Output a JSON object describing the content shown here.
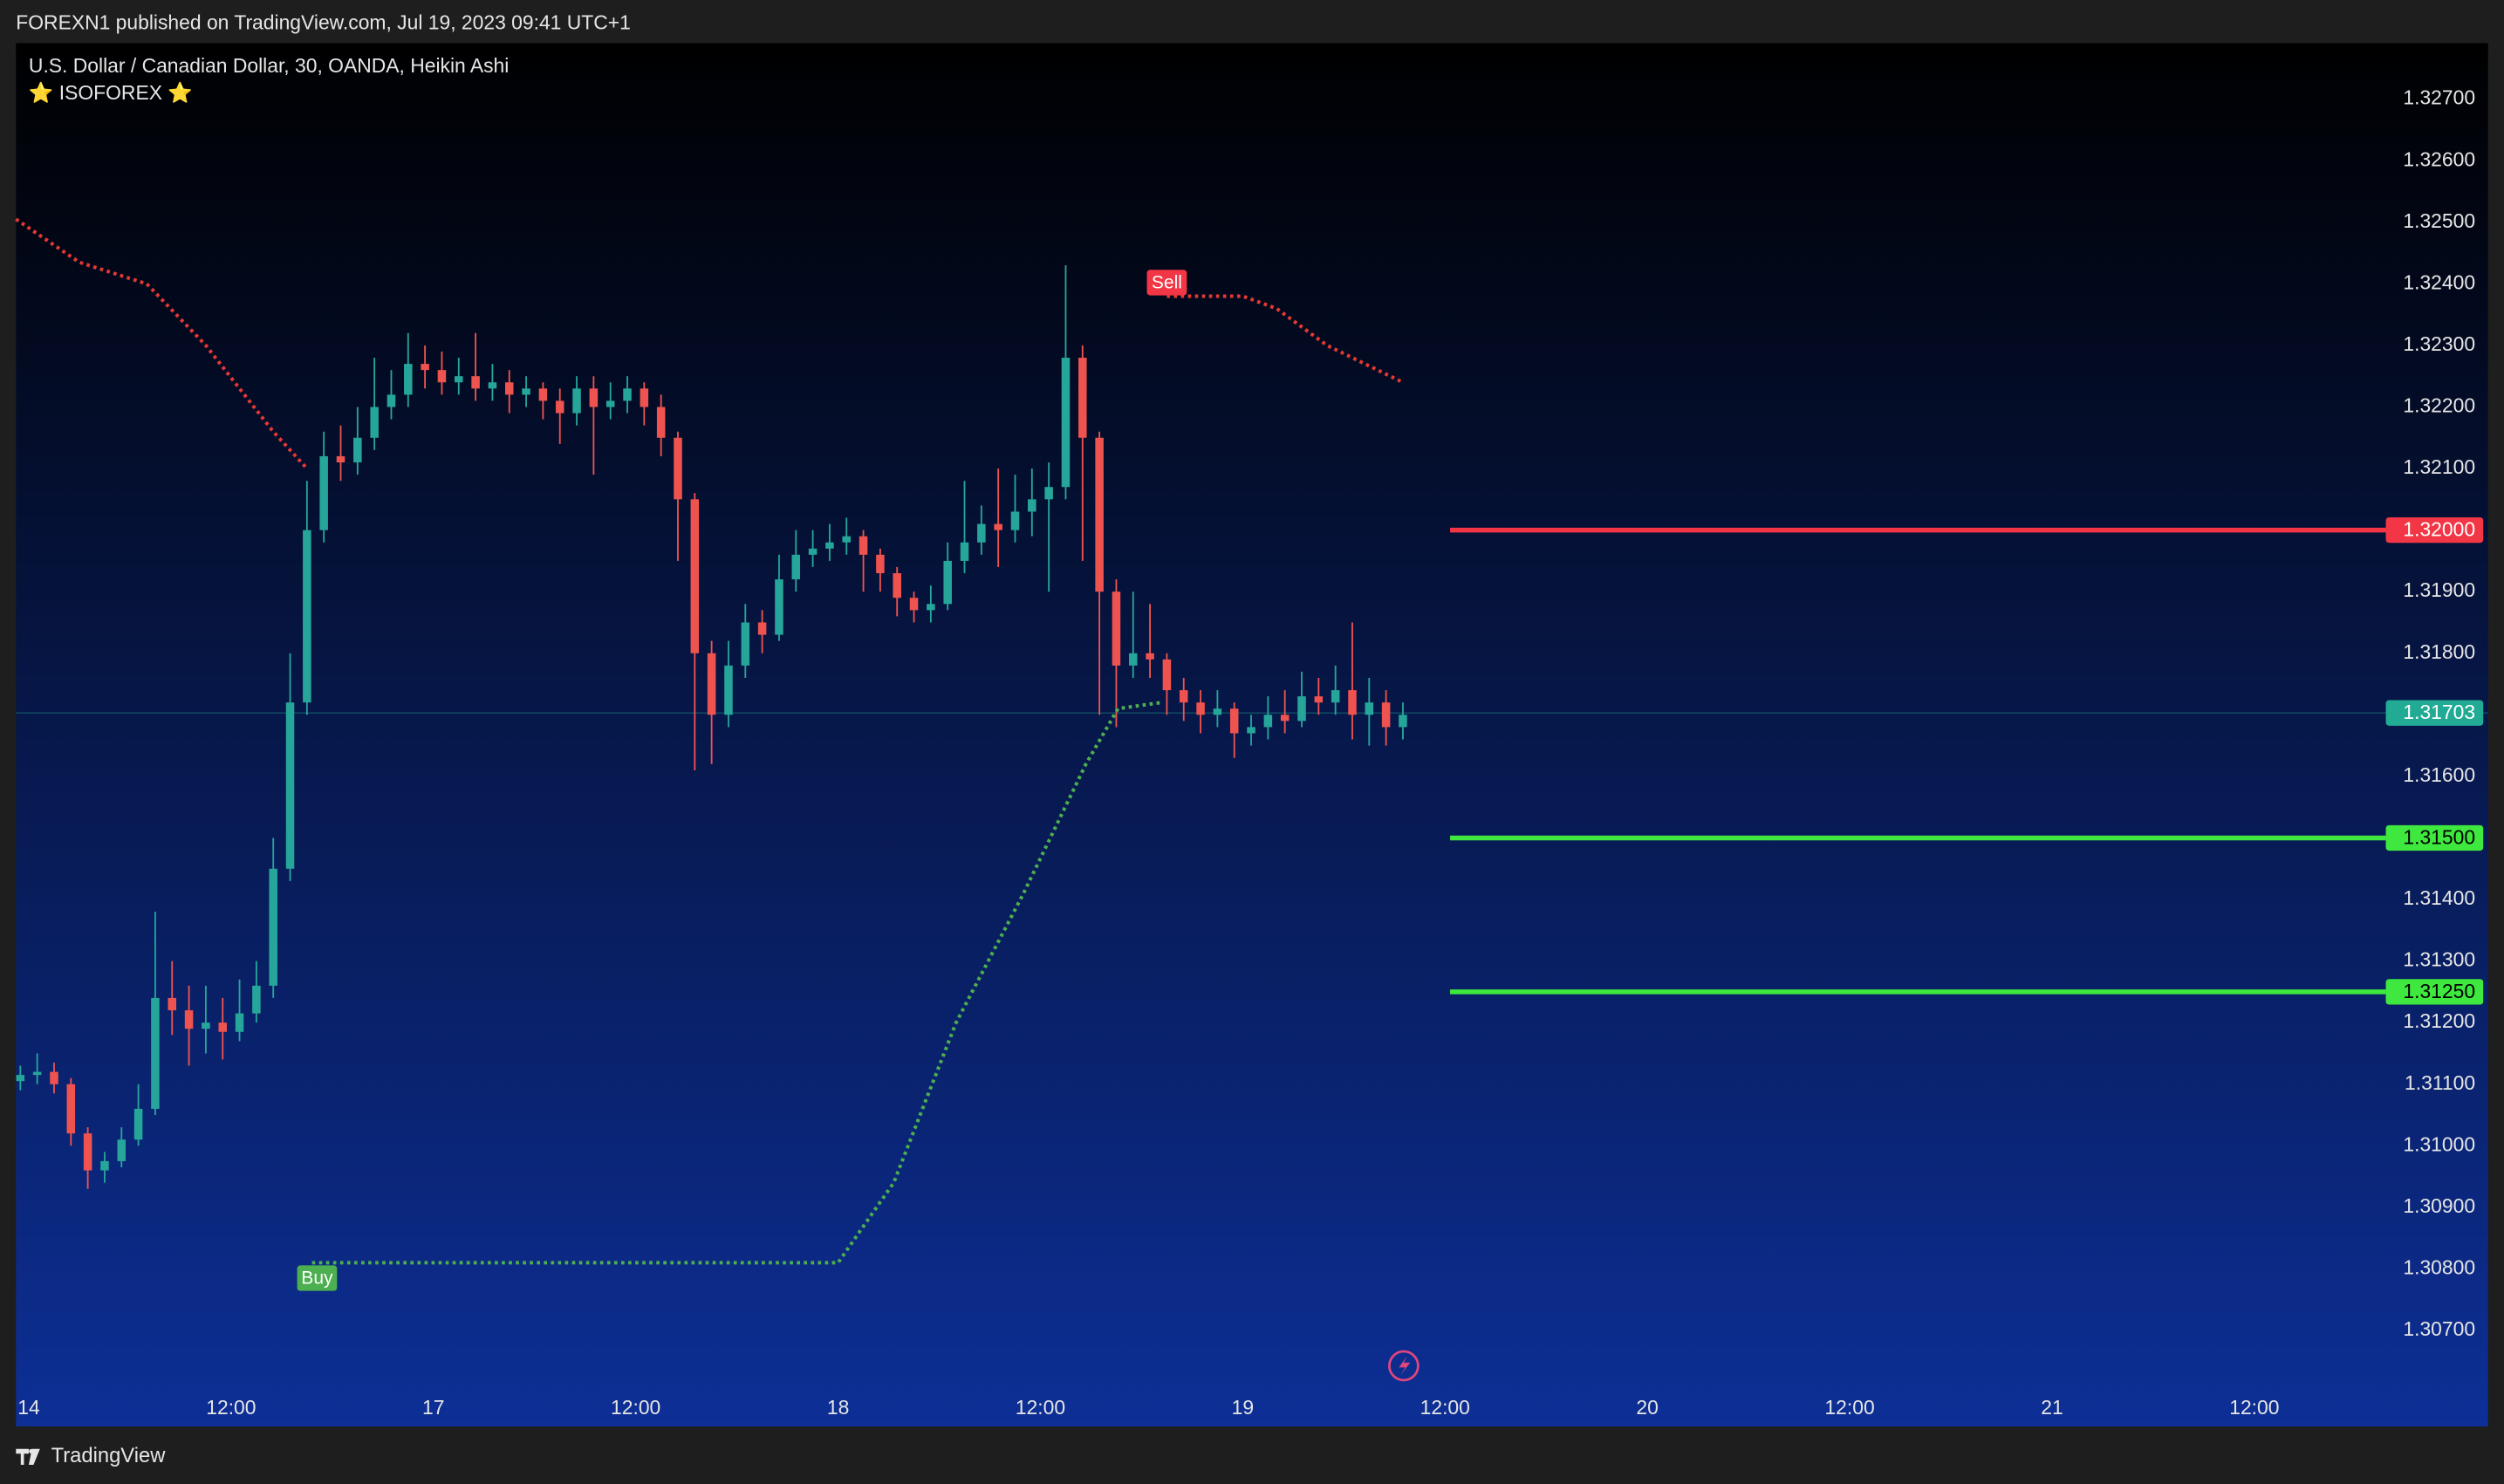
{
  "header": {
    "text": "FOREXN1 published on TradingView.com, Jul 19, 2023 09:41 UTC+1"
  },
  "footer": {
    "brand": "TradingView"
  },
  "chart_data": {
    "type": "candlestick",
    "title": "U.S. Dollar / Canadian Dollar, 30, OANDA, Heikin Ashi",
    "subtitle": "⭐ ISOFOREX ⭐",
    "up_color": "#26a69a",
    "down_color": "#ef5350",
    "x": [
      -0.5,
      0.5,
      1.5,
      2.5,
      3.5,
      4.5,
      5.5,
      6.5,
      7.5,
      8.5,
      9.5,
      10.5,
      11.5,
      12.5,
      13.5,
      14.5,
      15.5,
      16.5,
      17.5,
      18.5,
      19.5,
      20.5,
      21.5,
      22.5,
      23.5,
      24.5,
      25.5,
      26.5,
      27.5,
      28.5,
      29.5,
      30.5,
      31.5,
      32.5,
      33.5,
      34.5,
      35.5,
      36.5,
      37.5,
      38.5,
      39.5,
      40.5,
      41.5,
      42.5,
      43.5,
      44.5,
      45.5,
      46.5,
      47.5,
      48.5,
      49.5,
      50.5,
      51.5,
      52.5,
      53.5,
      54.5,
      55.5,
      56.5,
      57.5,
      58.5,
      59.5,
      60.5,
      61.5,
      62.5,
      63.5,
      64.5,
      65.5,
      66.5,
      67.5,
      68.5,
      69.5,
      70.5,
      71.5,
      72.5,
      73.5,
      74.5,
      75.5,
      76.5,
      77.5,
      78.5,
      79.5,
      80.5,
      81.5
    ],
    "open": [
      1.31105,
      1.31115,
      1.3112,
      1.311,
      1.3102,
      1.3096,
      1.30975,
      1.3101,
      1.3106,
      1.3124,
      1.3122,
      1.3119,
      1.312,
      1.31185,
      1.31215,
      1.3126,
      1.3145,
      1.3172,
      1.32,
      1.3212,
      1.3211,
      1.3215,
      1.322,
      1.3222,
      1.3227,
      1.3226,
      1.3224,
      1.3225,
      1.3223,
      1.3224,
      1.3222,
      1.3223,
      1.3221,
      1.3219,
      1.3223,
      1.322,
      1.3221,
      1.3223,
      1.322,
      1.3215,
      1.3205,
      1.318,
      1.317,
      1.3178,
      1.3185,
      1.3183,
      1.3192,
      1.3196,
      1.3197,
      1.3198,
      1.3199,
      1.3196,
      1.3193,
      1.3189,
      1.3187,
      1.3188,
      1.3195,
      1.3198,
      1.3201,
      1.32,
      1.3203,
      1.3205,
      1.3207,
      1.3228,
      1.3215,
      1.319,
      1.3178,
      1.318,
      1.3179,
      1.3174,
      1.3172,
      1.317,
      1.3171,
      1.3167,
      1.3168,
      1.317,
      1.3169,
      1.3173,
      1.3172,
      1.3174,
      1.317,
      1.3172,
      1.3168
    ],
    "high": [
      1.3113,
      1.3115,
      1.31135,
      1.3111,
      1.3103,
      1.3099,
      1.3103,
      1.311,
      1.3138,
      1.313,
      1.3126,
      1.3126,
      1.3124,
      1.3127,
      1.313,
      1.315,
      1.318,
      1.3208,
      1.3216,
      1.3217,
      1.322,
      1.3228,
      1.3226,
      1.3232,
      1.323,
      1.3229,
      1.3228,
      1.3232,
      1.3227,
      1.3226,
      1.3225,
      1.3224,
      1.3223,
      1.3225,
      1.3225,
      1.3224,
      1.3225,
      1.3224,
      1.3222,
      1.3216,
      1.3206,
      1.3182,
      1.3182,
      1.3188,
      1.3187,
      1.3196,
      1.32,
      1.32,
      1.3201,
      1.3202,
      1.32,
      1.3197,
      1.3194,
      1.319,
      1.3191,
      1.3198,
      1.3208,
      1.3204,
      1.321,
      1.3209,
      1.321,
      1.3211,
      1.3243,
      1.323,
      1.3216,
      1.3192,
      1.319,
      1.3188,
      1.318,
      1.3176,
      1.3174,
      1.3174,
      1.3172,
      1.317,
      1.3173,
      1.3174,
      1.3177,
      1.3176,
      1.3178,
      1.3185,
      1.3176,
      1.3174,
      1.3172
    ],
    "low": [
      1.3109,
      1.311,
      1.31085,
      1.31,
      1.3093,
      1.3094,
      1.30965,
      1.31,
      1.3105,
      1.3118,
      1.3113,
      1.3115,
      1.3114,
      1.3117,
      1.312,
      1.3124,
      1.3143,
      1.317,
      1.3198,
      1.3208,
      1.3209,
      1.3213,
      1.3218,
      1.322,
      1.3223,
      1.3222,
      1.3222,
      1.3221,
      1.3221,
      1.3219,
      1.322,
      1.3218,
      1.3214,
      1.3217,
      1.3209,
      1.3218,
      1.3219,
      1.3217,
      1.3212,
      1.3195,
      1.3161,
      1.3162,
      1.3168,
      1.3176,
      1.318,
      1.3182,
      1.319,
      1.3194,
      1.3195,
      1.3196,
      1.319,
      1.319,
      1.3186,
      1.3185,
      1.3185,
      1.3187,
      1.3193,
      1.3196,
      1.3194,
      1.3198,
      1.3199,
      1.319,
      1.3205,
      1.3195,
      1.317,
      1.3168,
      1.3176,
      1.3176,
      1.317,
      1.3169,
      1.3167,
      1.3168,
      1.3163,
      1.3165,
      1.3166,
      1.3167,
      1.3168,
      1.317,
      1.317,
      1.3166,
      1.3165,
      1.3165,
      1.3166
    ],
    "close": [
      1.31115,
      1.3112,
      1.311,
      1.3102,
      1.3096,
      1.30975,
      1.3101,
      1.3106,
      1.3124,
      1.3122,
      1.3119,
      1.312,
      1.31185,
      1.31215,
      1.3126,
      1.3145,
      1.3172,
      1.32,
      1.3212,
      1.3211,
      1.3215,
      1.322,
      1.3222,
      1.3227,
      1.3226,
      1.3224,
      1.3225,
      1.3223,
      1.3224,
      1.3222,
      1.3223,
      1.3221,
      1.3219,
      1.3223,
      1.322,
      1.3221,
      1.3223,
      1.322,
      1.3215,
      1.3205,
      1.318,
      1.317,
      1.3178,
      1.3185,
      1.3183,
      1.3192,
      1.3196,
      1.3197,
      1.3198,
      1.3199,
      1.3196,
      1.3193,
      1.3189,
      1.3187,
      1.3188,
      1.3195,
      1.3198,
      1.3201,
      1.32,
      1.3203,
      1.3205,
      1.3207,
      1.3228,
      1.3215,
      1.319,
      1.3178,
      1.318,
      1.3179,
      1.3174,
      1.3172,
      1.317,
      1.3171,
      1.3167,
      1.3168,
      1.317,
      1.3169,
      1.3173,
      1.3172,
      1.3174,
      1.317,
      1.3172,
      1.3168,
      1.317
    ],
    "overlays": [
      {
        "color": "#e53935",
        "x": [
          -0.76,
          3,
          7,
          10.5,
          14.5,
          16.5
        ],
        "values": [
          1.32505,
          1.32435,
          1.324,
          1.323,
          1.3216,
          1.321
        ]
      },
      {
        "color": "#e53935",
        "x": [
          67.5,
          72,
          74,
          77,
          81.5
        ],
        "values": [
          1.3238,
          1.3238,
          1.3236,
          1.323,
          1.3224
        ]
      },
      {
        "color": "#4caf50",
        "x": [
          16.8,
          48,
          51.3,
          55,
          59,
          62.7,
          64.6,
          67.2
        ],
        "values": [
          1.3081,
          1.3081,
          1.3094,
          1.312,
          1.3141,
          1.3162,
          1.3171,
          1.3172
        ]
      }
    ],
    "signals": [
      {
        "label": "Buy",
        "x": 17.1,
        "value": 1.30785,
        "color": "#4caf50"
      },
      {
        "label": "Sell",
        "x": 67.5,
        "value": 1.32402,
        "color": "#f23645"
      }
    ],
    "levels": [
      {
        "value": 1.32,
        "label": "1.32000",
        "x": 84.3,
        "color": "#f23645"
      },
      {
        "value": 1.315,
        "label": "1.31500",
        "x": 84.3,
        "color": "#3ee83e"
      },
      {
        "value": 1.3125,
        "label": "1.31250",
        "x": 84.3,
        "color": "#3ee83e"
      }
    ],
    "last_price": {
      "value": 1.31703,
      "label": "1.31703",
      "color": "#22ab94"
    },
    "xlim": [
      -0.76,
      145.86
    ],
    "xticks": [
      {
        "value": 0,
        "label": "14"
      },
      {
        "value": 12,
        "label": "12:00"
      },
      {
        "value": 24,
        "label": "17"
      },
      {
        "value": 36,
        "label": "12:00"
      },
      {
        "value": 48,
        "label": "18"
      },
      {
        "value": 60,
        "label": "12:00"
      },
      {
        "value": 72,
        "label": "19"
      },
      {
        "value": 84,
        "label": "12:00"
      },
      {
        "value": 96,
        "label": "20"
      },
      {
        "value": 108,
        "label": "12:00"
      },
      {
        "value": 120,
        "label": "21"
      },
      {
        "value": 132,
        "label": "12:00"
      }
    ],
    "ylim": [
      1.30544,
      1.32791
    ],
    "yticks": [
      {
        "value": 1.307,
        "label": "1.30700"
      },
      {
        "value": 1.308,
        "label": "1.30800"
      },
      {
        "value": 1.309,
        "label": "1.30900"
      },
      {
        "value": 1.31,
        "label": "1.31000"
      },
      {
        "value": 1.311,
        "label": "1.31100"
      },
      {
        "value": 1.312,
        "label": "1.31200"
      },
      {
        "value": 1.313,
        "label": "1.31300"
      },
      {
        "value": 1.314,
        "label": "1.31400"
      },
      {
        "value": 1.315,
        "label": "1.31500"
      },
      {
        "value": 1.316,
        "label": "1.31600"
      },
      {
        "value": 1.317,
        "label": "1.31700"
      },
      {
        "value": 1.318,
        "label": "1.31800"
      },
      {
        "value": 1.319,
        "label": "1.31900"
      },
      {
        "value": 1.32,
        "label": "1.32000"
      },
      {
        "value": 1.321,
        "label": "1.32100"
      },
      {
        "value": 1.322,
        "label": "1.32200"
      },
      {
        "value": 1.323,
        "label": "1.32300"
      },
      {
        "value": 1.324,
        "label": "1.32400"
      },
      {
        "value": 1.325,
        "label": "1.32500"
      },
      {
        "value": 1.326,
        "label": "1.32600"
      },
      {
        "value": 1.327,
        "label": "1.32700"
      }
    ]
  }
}
